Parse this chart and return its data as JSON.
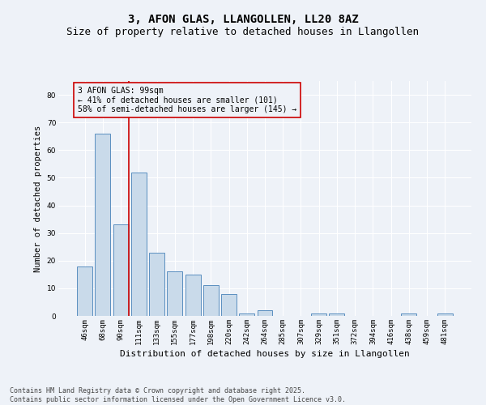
{
  "title": "3, AFON GLAS, LLANGOLLEN, LL20 8AZ",
  "subtitle": "Size of property relative to detached houses in Llangollen",
  "xlabel": "Distribution of detached houses by size in Llangollen",
  "ylabel": "Number of detached properties",
  "categories": [
    "46sqm",
    "68sqm",
    "90sqm",
    "111sqm",
    "133sqm",
    "155sqm",
    "177sqm",
    "198sqm",
    "220sqm",
    "242sqm",
    "264sqm",
    "285sqm",
    "307sqm",
    "329sqm",
    "351sqm",
    "372sqm",
    "394sqm",
    "416sqm",
    "438sqm",
    "459sqm",
    "481sqm"
  ],
  "values": [
    18,
    66,
    33,
    52,
    23,
    16,
    15,
    11,
    8,
    1,
    2,
    0,
    0,
    1,
    1,
    0,
    0,
    0,
    1,
    0,
    1
  ],
  "bar_color": "#c9daea",
  "bar_edge_color": "#5a8fc0",
  "ylim": [
    0,
    85
  ],
  "yticks": [
    0,
    10,
    20,
    30,
    40,
    50,
    60,
    70,
    80
  ],
  "vline_x_index": 2,
  "vline_color": "#cc0000",
  "annotation_box_text": "3 AFON GLAS: 99sqm\n← 41% of detached houses are smaller (101)\n58% of semi-detached houses are larger (145) →",
  "annotation_box_color": "#cc0000",
  "bg_color": "#eef2f8",
  "grid_color": "#ffffff",
  "footer_line1": "Contains HM Land Registry data © Crown copyright and database right 2025.",
  "footer_line2": "Contains public sector information licensed under the Open Government Licence v3.0.",
  "title_fontsize": 10,
  "subtitle_fontsize": 9,
  "axis_label_fontsize": 7.5,
  "tick_fontsize": 6.5,
  "annotation_fontsize": 7,
  "footer_fontsize": 6
}
